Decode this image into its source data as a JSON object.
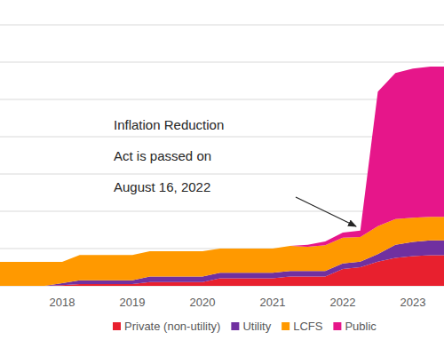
{
  "chart_data": {
    "type": "area",
    "stacked": true,
    "grid": true,
    "tick_labels": "x",
    "legend": "bottom",
    "annotation": [
      "Inflation Reduction",
      "Act is passed on",
      "August 16, 2022"
    ],
    "categories": [
      null,
      null,
      null,
      null,
      "2018",
      null,
      null,
      null,
      "2019",
      null,
      null,
      null,
      "2020",
      null,
      null,
      null,
      "2021",
      null,
      null,
      null,
      "2022",
      null,
      null,
      null,
      "2023",
      null,
      null
    ],
    "ylim": [
      0,
      7
    ],
    "yticks": [
      0,
      1,
      2,
      3,
      4,
      5,
      6,
      7
    ],
    "series": [
      {
        "name": "Private (non-utility)",
        "color": "#e8202e",
        "values": [
          0,
          0,
          0,
          0,
          0.02,
          0.05,
          0.05,
          0.05,
          0.05,
          0.1,
          0.1,
          0.1,
          0.1,
          0.2,
          0.2,
          0.2,
          0.2,
          0.25,
          0.25,
          0.25,
          0.45,
          0.5,
          0.65,
          0.75,
          0.8,
          0.82,
          0.82
        ]
      },
      {
        "name": "Utility",
        "color": "#7030a0",
        "values": [
          0,
          0,
          0,
          0,
          0.05,
          0.1,
          0.1,
          0.1,
          0.1,
          0.15,
          0.15,
          0.15,
          0.15,
          0.15,
          0.15,
          0.15,
          0.15,
          0.15,
          0.15,
          0.15,
          0.15,
          0.15,
          0.2,
          0.35,
          0.38,
          0.4,
          0.4
        ]
      },
      {
        "name": "LCFS",
        "color": "#ff9900",
        "values": [
          0.64,
          0.64,
          0.64,
          0.64,
          0.57,
          0.68,
          0.68,
          0.68,
          0.68,
          0.68,
          0.68,
          0.68,
          0.68,
          0.65,
          0.65,
          0.65,
          0.65,
          0.67,
          0.65,
          0.69,
          0.69,
          0.66,
          0.75,
          0.69,
          0.65,
          0.63,
          0.63
        ]
      },
      {
        "name": "Public",
        "color": "#e6168a",
        "values": [
          0,
          0,
          0,
          0,
          0,
          0,
          0,
          0,
          0,
          0,
          0,
          0,
          0,
          0,
          0,
          0,
          0,
          0,
          0.05,
          0.1,
          0.14,
          0.17,
          3.61,
          3.92,
          4.0,
          4.03,
          4.03
        ]
      }
    ]
  }
}
